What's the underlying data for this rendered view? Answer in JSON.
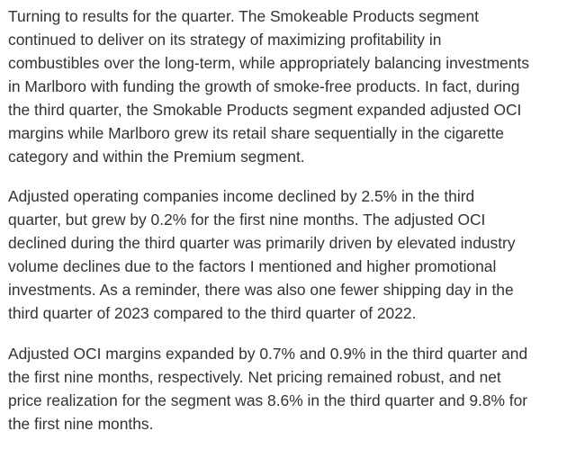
{
  "article": {
    "paragraphs": [
      {
        "lines": [
          "Turning to results for the quarter. The Smokeable Products segment",
          "continued to deliver on its strategy of maximizing profitability in",
          "combustibles over the long-term, while appropriately balancing investments",
          "in Marlboro with funding the growth of smoke-free products. In fact, during",
          "the third quarter, the Smokable Products segment expanded adjusted OCI",
          "margins while Marlboro grew its retail share sequentially in the cigarette",
          "category and within the Premium segment."
        ]
      },
      {
        "lines": [
          "Adjusted operating companies income declined by 2.5% in the third",
          "quarter, but grew by 0.2% for the first nine months. The adjusted OCI",
          "declined during the third quarter was primarily driven by elevated industry",
          "volume declines due to the factors I mentioned and higher promotional",
          "investments. As a reminder, there was also one fewer shipping day in the",
          "third quarter of 2023 compared to the third quarter of 2022."
        ]
      },
      {
        "lines": [
          "Adjusted OCI margins expanded by 0.7% and 0.9% in the third quarter and",
          "the first nine months, respectively. Net pricing remained robust, and net",
          "price realization for the segment was 8.6% in the third quarter and 9.8% for",
          "the first nine months."
        ]
      }
    ]
  }
}
